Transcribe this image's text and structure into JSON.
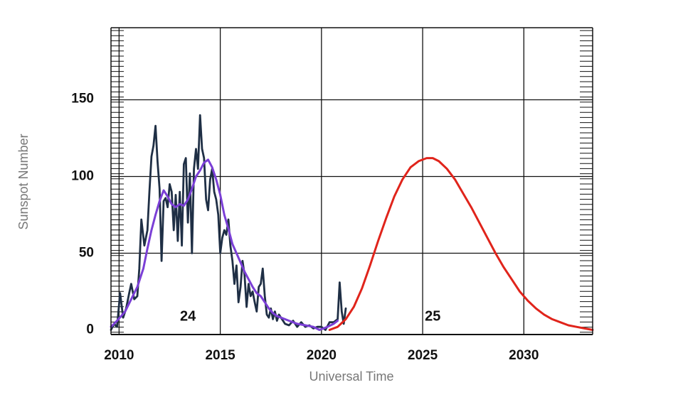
{
  "chart_data": {
    "type": "line",
    "xlabel": "Universal Time",
    "ylabel": "Sunspot Number",
    "xlim": [
      2009.6,
      2033.4
    ],
    "ylim": [
      -3,
      197
    ],
    "x_ticks": [
      {
        "value": 2010,
        "label": "2010"
      },
      {
        "value": 2015,
        "label": "2015"
      },
      {
        "value": 2020,
        "label": "2020"
      },
      {
        "value": 2025,
        "label": "2025"
      },
      {
        "value": 2030,
        "label": "2030"
      }
    ],
    "y_ticks": [
      {
        "value": 0,
        "label": "0"
      },
      {
        "value": 50,
        "label": "50"
      },
      {
        "value": 100,
        "label": "100"
      },
      {
        "value": 150,
        "label": "150"
      }
    ],
    "grid": true,
    "annotations": [
      {
        "text": "24",
        "x": 2013.4,
        "y": 7
      },
      {
        "text": "25",
        "x": 2025.5,
        "y": 7
      }
    ],
    "colors": {
      "monthly": "#1f2f45",
      "smoothed": "#7b3fd6",
      "predicted": "#e0241b",
      "grid": "#111111"
    },
    "series": [
      {
        "key": "monthly",
        "x": [
          2009.6,
          2009.75,
          2009.9,
          2010.05,
          2010.2,
          2010.35,
          2010.5,
          2010.6,
          2010.75,
          2010.9,
          2011.0,
          2011.1,
          2011.25,
          2011.4,
          2011.5,
          2011.6,
          2011.7,
          2011.8,
          2011.9,
          2012.0,
          2012.1,
          2012.2,
          2012.3,
          2012.4,
          2012.5,
          2012.6,
          2012.7,
          2012.8,
          2012.9,
          2013.0,
          2013.1,
          2013.2,
          2013.3,
          2013.4,
          2013.5,
          2013.6,
          2013.7,
          2013.8,
          2013.9,
          2014.0,
          2014.1,
          2014.2,
          2014.3,
          2014.4,
          2014.5,
          2014.6,
          2014.7,
          2014.8,
          2014.9,
          2015.0,
          2015.1,
          2015.2,
          2015.3,
          2015.4,
          2015.5,
          2015.6,
          2015.7,
          2015.8,
          2015.9,
          2016.0,
          2016.1,
          2016.2,
          2016.3,
          2016.4,
          2016.5,
          2016.6,
          2016.7,
          2016.8,
          2016.9,
          2017.0,
          2017.1,
          2017.2,
          2017.3,
          2017.4,
          2017.5,
          2017.6,
          2017.7,
          2017.8,
          2017.9,
          2018.0,
          2018.2,
          2018.4,
          2018.6,
          2018.8,
          2019.0,
          2019.2,
          2019.4,
          2019.6,
          2019.8,
          2020.0,
          2020.2,
          2020.4,
          2020.6,
          2020.8,
          2020.9,
          2021.0,
          2021.1,
          2021.2
        ],
        "y": [
          0,
          4,
          2,
          24,
          8,
          14,
          24,
          30,
          20,
          22,
          40,
          72,
          55,
          65,
          90,
          113,
          120,
          133,
          110,
          92,
          45,
          84,
          86,
          80,
          95,
          90,
          65,
          88,
          58,
          90,
          55,
          108,
          112,
          70,
          102,
          50,
          105,
          118,
          105,
          140,
          118,
          112,
          85,
          78,
          98,
          105,
          90,
          85,
          75,
          50,
          60,
          65,
          62,
          72,
          55,
          45,
          30,
          42,
          18,
          28,
          45,
          36,
          15,
          30,
          22,
          25,
          18,
          12,
          28,
          30,
          40,
          22,
          10,
          8,
          14,
          7,
          12,
          6,
          10,
          8,
          4,
          3,
          6,
          2,
          5,
          2,
          3,
          1,
          2,
          2,
          0,
          5,
          5,
          7,
          31,
          12,
          4,
          14
        ]
      },
      {
        "key": "smoothed",
        "x": [
          2009.6,
          2009.9,
          2010.3,
          2010.6,
          2010.9,
          2011.2,
          2011.4,
          2011.6,
          2011.8,
          2012.0,
          2012.2,
          2012.4,
          2012.6,
          2012.8,
          2013.0,
          2013.2,
          2013.4,
          2013.6,
          2013.8,
          2014.0,
          2014.2,
          2014.4,
          2014.6,
          2014.8,
          2015.0,
          2015.2,
          2015.4,
          2015.6,
          2015.8,
          2016.0,
          2016.2,
          2016.4,
          2016.6,
          2016.8,
          2017.0,
          2017.2,
          2017.4,
          2017.6,
          2017.8,
          2018.0,
          2018.4,
          2018.8,
          2019.2,
          2019.6,
          2019.9,
          2020.1,
          2020.3,
          2020.6,
          2020.8
        ],
        "y": [
          2,
          6,
          12,
          20,
          28,
          40,
          53,
          65,
          75,
          84,
          91,
          87,
          82,
          80,
          82,
          81,
          85,
          92,
          100,
          104,
          109,
          111,
          106,
          98,
          88,
          75,
          66,
          56,
          50,
          44,
          38,
          33,
          28,
          24,
          22,
          18,
          14,
          11,
          9,
          8,
          6,
          4,
          3,
          2,
          0,
          1,
          2,
          4,
          6
        ]
      },
      {
        "key": "predicted",
        "x": [
          2020.4,
          2020.8,
          2021.2,
          2021.6,
          2022.0,
          2022.4,
          2022.8,
          2023.2,
          2023.6,
          2024.0,
          2024.4,
          2024.8,
          2025.2,
          2025.5,
          2025.8,
          2026.2,
          2026.6,
          2027.0,
          2027.4,
          2027.8,
          2028.2,
          2028.6,
          2029.0,
          2029.4,
          2029.8,
          2030.2,
          2030.6,
          2031.0,
          2031.4,
          2031.8,
          2032.2,
          2032.6,
          2033.0,
          2033.4
        ],
        "y": [
          0,
          2,
          7,
          15,
          27,
          42,
          58,
          73,
          87,
          98,
          106,
          110,
          112,
          112,
          110,
          105,
          98,
          89,
          80,
          70,
          60,
          50,
          41,
          33,
          25,
          19,
          14,
          10,
          7,
          5,
          3,
          2,
          1,
          0
        ]
      }
    ]
  }
}
